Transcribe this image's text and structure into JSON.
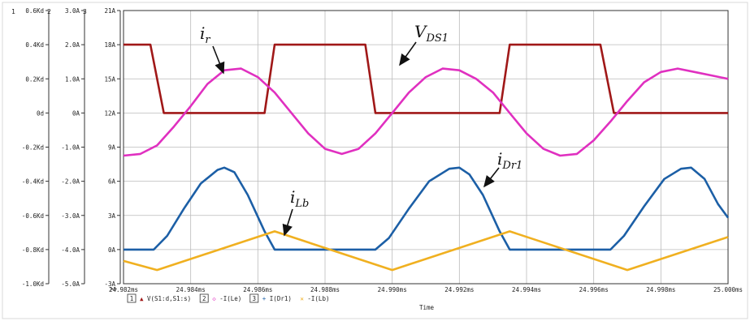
{
  "chart_data": {
    "type": "line",
    "xlabel": "Time",
    "x_ticks": [
      "24.982ms",
      "24.984ms",
      "24.986ms",
      "24.988ms",
      "24.990ms",
      "24.992ms",
      "24.994ms",
      "24.996ms",
      "24.998ms",
      "25.000ms"
    ],
    "xlim": [
      24.982,
      25.0
    ],
    "axes": [
      {
        "id": "1",
        "ticks": [
          "0.6Kd",
          "0.4Kd",
          "0.2Kd",
          "0d",
          "-0.2Kd",
          "-0.4Kd",
          "-0.6Kd",
          "-0.8Kd",
          "-1.0Kd"
        ],
        "ylim": [
          -1.0,
          0.6
        ]
      },
      {
        "id": "2",
        "ticks": [
          "3.0A",
          "2.0A",
          "1.0A",
          "0A",
          "-1.0A",
          "-2.0A",
          "-3.0A",
          "-4.0A",
          "-5.0A"
        ],
        "ylim": [
          -5.0,
          3.0
        ]
      },
      {
        "id": "3",
        "ticks": [
          "21A",
          "18A",
          "15A",
          "12A",
          "9A",
          "6A",
          "3A",
          "0A",
          "-3A"
        ],
        "ylim": [
          -3,
          21
        ]
      }
    ],
    "series": [
      {
        "key": "vds",
        "legend_num": "1",
        "marker": "▲",
        "name": "V(S1:d,S1:s)",
        "color": "#a01818",
        "axis": "1",
        "points": [
          [
            24.982,
            0.4
          ],
          [
            24.9828,
            0.4
          ],
          [
            24.9832,
            0.0
          ],
          [
            24.9862,
            0.0
          ],
          [
            24.9865,
            0.4
          ],
          [
            24.9892,
            0.4
          ],
          [
            24.9895,
            0.0
          ],
          [
            24.9932,
            0.0
          ],
          [
            24.9935,
            0.4
          ],
          [
            24.9962,
            0.4
          ],
          [
            24.9966,
            0.0
          ],
          [
            25.0,
            0.0
          ]
        ]
      },
      {
        "key": "ir",
        "legend_num": "2",
        "marker": "◇",
        "name": "-I(Le)",
        "color": "#e030c0",
        "axis": "2",
        "points": [
          [
            24.982,
            -1.25
          ],
          [
            24.9825,
            -1.2
          ],
          [
            24.983,
            -0.95
          ],
          [
            24.9835,
            -0.4
          ],
          [
            24.984,
            0.2
          ],
          [
            24.9845,
            0.85
          ],
          [
            24.985,
            1.25
          ],
          [
            24.9855,
            1.3
          ],
          [
            24.986,
            1.05
          ],
          [
            24.9865,
            0.6
          ],
          [
            24.987,
            0.0
          ],
          [
            24.9875,
            -0.6
          ],
          [
            24.988,
            -1.05
          ],
          [
            24.9885,
            -1.2
          ],
          [
            24.989,
            -1.05
          ],
          [
            24.9895,
            -0.6
          ],
          [
            24.99,
            0.0
          ],
          [
            24.9905,
            0.6
          ],
          [
            24.991,
            1.05
          ],
          [
            24.9915,
            1.3
          ],
          [
            24.992,
            1.25
          ],
          [
            24.9925,
            1.0
          ],
          [
            24.993,
            0.6
          ],
          [
            24.9935,
            0.0
          ],
          [
            24.994,
            -0.6
          ],
          [
            24.9945,
            -1.05
          ],
          [
            24.995,
            -1.25
          ],
          [
            24.9955,
            -1.2
          ],
          [
            24.996,
            -0.8
          ],
          [
            24.9965,
            -0.25
          ],
          [
            24.997,
            0.35
          ],
          [
            24.9975,
            0.9
          ],
          [
            24.998,
            1.2
          ],
          [
            24.9985,
            1.3
          ],
          [
            24.999,
            1.2
          ],
          [
            24.9995,
            1.1
          ],
          [
            25.0,
            1.0
          ]
        ]
      },
      {
        "key": "idr",
        "legend_num": "3",
        "marker": "+",
        "name": "I(Dr1)",
        "color": "#1c5fa6",
        "axis": "3",
        "points": [
          [
            24.982,
            0.0
          ],
          [
            24.9829,
            0.0
          ],
          [
            24.9833,
            1.2
          ],
          [
            24.9838,
            3.6
          ],
          [
            24.9843,
            5.8
          ],
          [
            24.9848,
            7.0
          ],
          [
            24.985,
            7.2
          ],
          [
            24.9853,
            6.8
          ],
          [
            24.9857,
            4.8
          ],
          [
            24.9862,
            1.6
          ],
          [
            24.9865,
            0.0
          ],
          [
            24.9895,
            0.0
          ],
          [
            24.9899,
            1.0
          ],
          [
            24.9905,
            3.6
          ],
          [
            24.9911,
            6.0
          ],
          [
            24.9917,
            7.1
          ],
          [
            24.992,
            7.2
          ],
          [
            24.9923,
            6.6
          ],
          [
            24.9927,
            4.8
          ],
          [
            24.9932,
            1.6
          ],
          [
            24.9935,
            0.0
          ],
          [
            24.9965,
            0.0
          ],
          [
            24.9969,
            1.2
          ],
          [
            24.9975,
            3.8
          ],
          [
            24.9981,
            6.2
          ],
          [
            24.9986,
            7.1
          ],
          [
            24.9989,
            7.2
          ],
          [
            24.9993,
            6.2
          ],
          [
            24.9997,
            4.0
          ],
          [
            25.0,
            2.8
          ]
        ]
      },
      {
        "key": "ilb",
        "legend_num": "",
        "marker": "✕",
        "name": "-I(Lb)",
        "color": "#f0b020",
        "axis": "3",
        "points": [
          [
            24.982,
            -1.0
          ],
          [
            24.983,
            -1.8
          ],
          [
            24.9865,
            1.6
          ],
          [
            24.99,
            -1.8
          ],
          [
            24.9935,
            1.6
          ],
          [
            24.997,
            -1.8
          ],
          [
            25.0,
            1.1
          ]
        ]
      }
    ],
    "annotations": [
      {
        "target": "ir",
        "base": "i",
        "sub": "r"
      },
      {
        "target": "vds",
        "base": "V",
        "sub": "DS1"
      },
      {
        "target": "idr",
        "base": "i",
        "sub": "Dr1"
      },
      {
        "target": "ilb",
        "base": "i",
        "sub": "Lb"
      }
    ],
    "grid": true
  }
}
